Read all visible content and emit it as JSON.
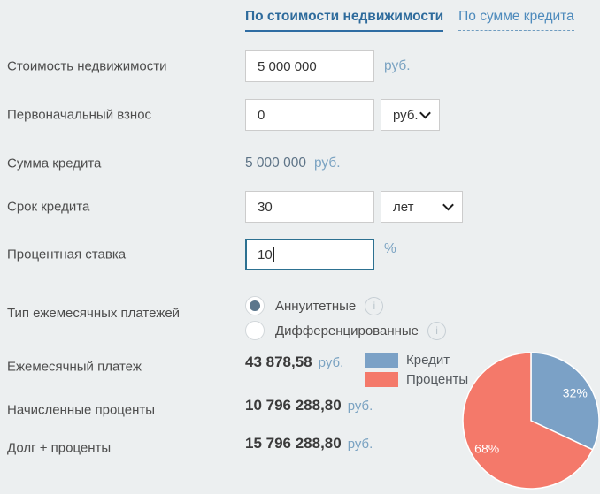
{
  "tabs": [
    {
      "label": "По стоимости недвижимости",
      "active": true
    },
    {
      "label": "По сумме кредита",
      "active": false
    }
  ],
  "form": {
    "property_value": {
      "label": "Стоимость недвижимости",
      "value": "5 000 000",
      "unit": "руб."
    },
    "down_payment": {
      "label": "Первоначальный взнос",
      "value": "0",
      "unit_selected": "руб."
    },
    "loan_amount": {
      "label": "Сумма кредита",
      "value": "5 000 000",
      "unit": "руб."
    },
    "loan_term": {
      "label": "Срок кредита",
      "value": "30",
      "unit_selected": "лет"
    },
    "interest_rate": {
      "label": "Процентная ставка",
      "value": "10",
      "unit": "%"
    },
    "payment_type": {
      "label": "Тип ежемесячных платежей",
      "options": [
        {
          "label": "Аннуитетные",
          "selected": true
        },
        {
          "label": "Дифференцированные",
          "selected": false
        }
      ],
      "info_icon_glyph": "i"
    }
  },
  "results": [
    {
      "label": "Ежемесячный платеж",
      "value": "43 878,58",
      "unit": "руб."
    },
    {
      "label": "Начисленные проценты",
      "value": "10 796 288,80",
      "unit": "руб."
    },
    {
      "label": "Долг + проценты",
      "value": "15 796 288,80",
      "unit": "руб."
    }
  ],
  "chart_data": {
    "type": "pie",
    "slices": [
      {
        "label": "Кредит",
        "value": 32,
        "display": "32%",
        "color": "#7ba1c6"
      },
      {
        "label": "Проценты",
        "value": 68,
        "display": "68%",
        "color": "#f4796a"
      }
    ],
    "start_angle_deg": 0,
    "direction": "clockwise",
    "legend_position": "left-of-chart"
  },
  "colors": {
    "background": "#eceff0",
    "tab_active": "#2e6b9c",
    "tab_inactive": "#4d8abc",
    "unit_text": "#7ba3c2",
    "label_text": "#4d4d4d",
    "result_value_text": "#3a3a3a",
    "focused_input_border": "#2d7191",
    "radio_selected_fill": "#5b768c"
  }
}
